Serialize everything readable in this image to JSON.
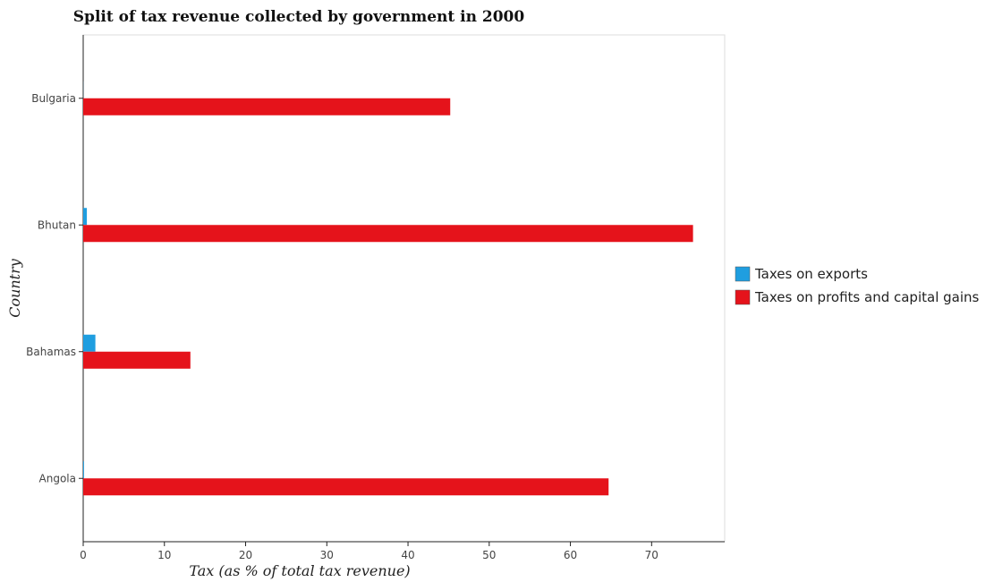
{
  "chart_data": {
    "type": "bar",
    "orientation": "horizontal",
    "title": "Split of tax revenue collected by government in 2000",
    "xlabel": "Tax (as % of total tax revenue)",
    "ylabel": "Country",
    "categories": [
      "Angola",
      "Bahamas",
      "Bhutan",
      "Bulgaria"
    ],
    "xlim": [
      0,
      79
    ],
    "xticks": [
      "0",
      "10",
      "20",
      "30",
      "40",
      "50",
      "60",
      "70"
    ],
    "series": [
      {
        "name": "Taxes on exports",
        "color": "#1f9ee0",
        "values": [
          0.1,
          1.5,
          0.45,
          0.01
        ]
      },
      {
        "name": "Taxes on profits and capital gains",
        "color": "#e5131b",
        "values": [
          64.7,
          13.2,
          75.1,
          45.2
        ]
      }
    ],
    "legend_position": "right",
    "grid": false
  }
}
